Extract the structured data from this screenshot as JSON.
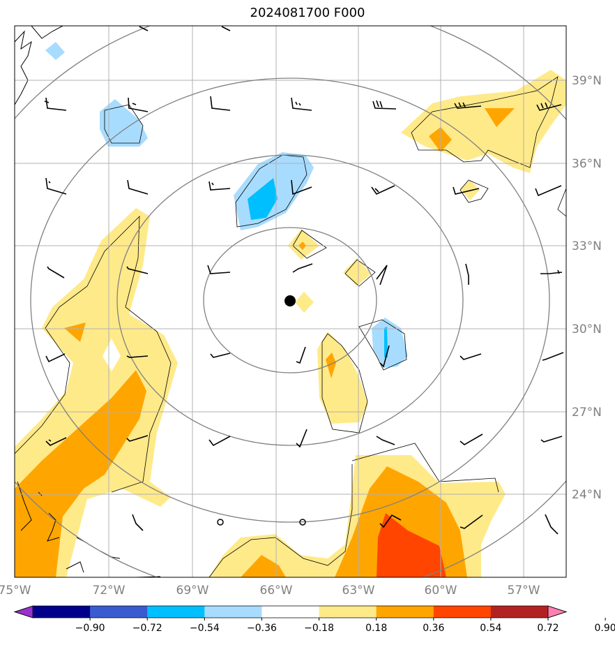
{
  "title": "2024081700 F000",
  "map": {
    "lon_range": [
      -75.0,
      -57.5
    ],
    "lat_range": [
      21.0,
      40.5
    ],
    "center_marker": {
      "lon": -65.5,
      "lat": 31.0
    },
    "range_rings_deg": [
      3.0,
      6.5,
      10.0,
      13.5
    ],
    "open_circles": [
      {
        "lon": -68.2,
        "lat": 23.0
      },
      {
        "lon": -65.0,
        "lat": 23.0
      }
    ],
    "lon_ticks": [
      {
        "value": -75,
        "label": "75°W"
      },
      {
        "value": -72,
        "label": "72°W"
      },
      {
        "value": -69,
        "label": "69°W"
      },
      {
        "value": -66,
        "label": "66°W"
      },
      {
        "value": -63,
        "label": "63°W"
      },
      {
        "value": -60,
        "label": "60°W"
      },
      {
        "value": -57,
        "label": "57°W"
      }
    ],
    "lat_ticks": [
      {
        "value": 39,
        "label": "39°N"
      },
      {
        "value": 36,
        "label": "36°N"
      },
      {
        "value": 33,
        "label": "33°N"
      },
      {
        "value": 30,
        "label": "30°N"
      },
      {
        "value": 27,
        "label": "27°N"
      },
      {
        "value": 24,
        "label": "24°N"
      }
    ],
    "colors": {
      "grid": "#b0b0b0",
      "ring": "#808080",
      "neg_light": "#a8dcff",
      "neg_mid": "#00bfff",
      "pos_light": "#ffea8a",
      "pos_mid": "#ffa500",
      "pos_high": "#ff4500"
    }
  },
  "colorbar": {
    "tick_values": [
      "−0.90",
      "−0.72",
      "−0.54",
      "−0.36",
      "−0.18",
      "0.18",
      "0.36",
      "0.54",
      "0.72",
      "0.90"
    ],
    "colors": [
      "#9932cc",
      "#00008b",
      "#3a5bd0",
      "#00bfff",
      "#a8dcff",
      "#ffffff",
      "#ffea8a",
      "#ffa500",
      "#ff4500",
      "#b22222",
      "#ff80b0"
    ]
  }
}
